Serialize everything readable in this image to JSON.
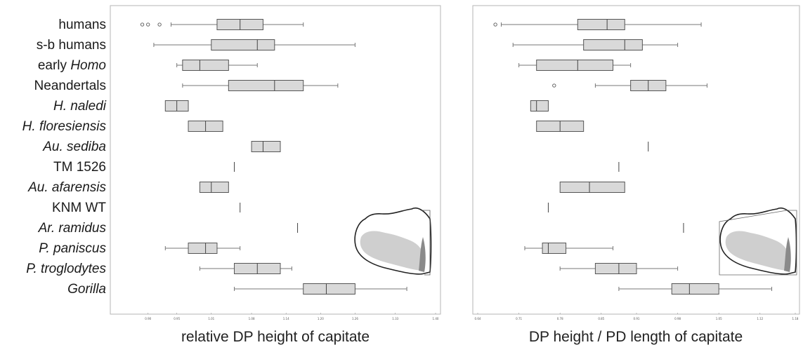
{
  "chart_data": [
    {
      "type": "box",
      "xlabel": "relative DP height of capitate",
      "xlim": [
        0.86,
        1.4
      ],
      "xticks": [
        0.9,
        0.95,
        1.01,
        1.08,
        1.14,
        1.2,
        1.26,
        1.33,
        1.4
      ],
      "xtick_labels": [
        "0.90",
        "0.95",
        "1.01",
        "1.08",
        "1.14",
        "1.20",
        "1.26",
        "1.33",
        "1.40"
      ],
      "categories": [
        {
          "label": "humans",
          "italic": false,
          "pre": "",
          "it": ""
        },
        {
          "label": "s-b humans",
          "italic": false,
          "pre": "",
          "it": ""
        },
        {
          "label": "early Homo",
          "italic": false,
          "pre": "early ",
          "it": "Homo"
        },
        {
          "label": "Neandertals",
          "italic": false,
          "pre": "",
          "it": ""
        },
        {
          "label": "H. naledi",
          "italic": true,
          "pre": "",
          "it": ""
        },
        {
          "label": "H. floresiensis",
          "italic": true,
          "pre": "",
          "it": ""
        },
        {
          "label": "Au. sediba",
          "italic": true,
          "pre": "",
          "it": ""
        },
        {
          "label": "TM 1526",
          "italic": false,
          "pre": "",
          "it": ""
        },
        {
          "label": "Au. afarensis",
          "italic": true,
          "pre": "",
          "it": ""
        },
        {
          "label": "KNM WT",
          "italic": false,
          "pre": "",
          "it": ""
        },
        {
          "label": "Ar. ramidus",
          "italic": true,
          "pre": "",
          "it": ""
        },
        {
          "label": "P. paniscus",
          "italic": true,
          "pre": "",
          "it": ""
        },
        {
          "label": "P. troglodytes",
          "italic": true,
          "pre": "",
          "it": ""
        },
        {
          "label": "Gorilla",
          "italic": true,
          "pre": "",
          "it": ""
        }
      ],
      "boxes": [
        {
          "min": 0.94,
          "q1": 1.02,
          "median": 1.06,
          "q3": 1.1,
          "max": 1.17,
          "outliers": [
            0.89,
            0.9,
            0.92
          ]
        },
        {
          "min": 0.91,
          "q1": 1.01,
          "median": 1.09,
          "q3": 1.12,
          "max": 1.26,
          "outliers": []
        },
        {
          "min": 0.95,
          "q1": 0.96,
          "median": 0.99,
          "q3": 1.04,
          "max": 1.09,
          "outliers": []
        },
        {
          "min": 0.96,
          "q1": 1.04,
          "median": 1.12,
          "q3": 1.17,
          "max": 1.23,
          "outliers": []
        },
        {
          "min": 0.93,
          "q1": 0.93,
          "median": 0.95,
          "q3": 0.97,
          "max": 0.97,
          "outliers": []
        },
        {
          "min": 0.97,
          "q1": 0.97,
          "median": 1.0,
          "q3": 1.03,
          "max": 1.03,
          "outliers": []
        },
        {
          "min": 1.08,
          "q1": 1.08,
          "median": 1.1,
          "q3": 1.13,
          "max": 1.13,
          "outliers": []
        },
        {
          "min": 1.05,
          "q1": 1.05,
          "median": 1.05,
          "q3": 1.05,
          "max": 1.05,
          "outliers": []
        },
        {
          "min": 0.99,
          "q1": 0.99,
          "median": 1.01,
          "q3": 1.04,
          "max": 1.04,
          "outliers": []
        },
        {
          "min": 1.06,
          "q1": 1.06,
          "median": 1.06,
          "q3": 1.06,
          "max": 1.06,
          "outliers": []
        },
        {
          "min": 1.16,
          "q1": 1.16,
          "median": 1.16,
          "q3": 1.16,
          "max": 1.16,
          "outliers": []
        },
        {
          "min": 0.93,
          "q1": 0.97,
          "median": 1.0,
          "q3": 1.02,
          "max": 1.06,
          "outliers": []
        },
        {
          "min": 0.99,
          "q1": 1.05,
          "median": 1.09,
          "q3": 1.13,
          "max": 1.15,
          "outliers": []
        },
        {
          "min": 1.05,
          "q1": 1.17,
          "median": 1.21,
          "q3": 1.26,
          "max": 1.35,
          "outliers": []
        }
      ]
    },
    {
      "type": "box",
      "xlabel": "DP height / PD length of capitate",
      "xlim": [
        0.64,
        1.18
      ],
      "xticks": [
        0.64,
        0.71,
        0.78,
        0.85,
        0.91,
        0.98,
        1.05,
        1.12,
        1.18
      ],
      "xtick_labels": [
        "0.64",
        "0.71",
        "0.78",
        "0.85",
        "0.91",
        "0.98",
        "1.05",
        "1.12",
        "1.18"
      ],
      "boxes": [
        {
          "min": 0.68,
          "q1": 0.81,
          "median": 0.86,
          "q3": 0.89,
          "max": 1.02,
          "outliers": [
            0.67
          ]
        },
        {
          "min": 0.7,
          "q1": 0.82,
          "median": 0.89,
          "q3": 0.92,
          "max": 0.98,
          "outliers": []
        },
        {
          "min": 0.71,
          "q1": 0.74,
          "median": 0.81,
          "q3": 0.87,
          "max": 0.9,
          "outliers": []
        },
        {
          "min": 0.84,
          "q1": 0.9,
          "median": 0.93,
          "q3": 0.96,
          "max": 1.03,
          "outliers": [
            0.77
          ]
        },
        {
          "min": 0.73,
          "q1": 0.73,
          "median": 0.74,
          "q3": 0.76,
          "max": 0.76,
          "outliers": []
        },
        {
          "min": 0.74,
          "q1": 0.74,
          "median": 0.78,
          "q3": 0.82,
          "max": 0.82,
          "outliers": []
        },
        {
          "min": 0.93,
          "q1": 0.93,
          "median": 0.93,
          "q3": 0.93,
          "max": 0.93,
          "outliers": []
        },
        {
          "min": 0.88,
          "q1": 0.88,
          "median": 0.88,
          "q3": 0.88,
          "max": 0.88,
          "outliers": []
        },
        {
          "min": 0.78,
          "q1": 0.78,
          "median": 0.83,
          "q3": 0.89,
          "max": 0.89,
          "outliers": []
        },
        {
          "min": 0.76,
          "q1": 0.76,
          "median": 0.76,
          "q3": 0.76,
          "max": 0.76,
          "outliers": []
        },
        {
          "min": 0.99,
          "q1": 0.99,
          "median": 0.99,
          "q3": 0.99,
          "max": 0.99,
          "outliers": []
        },
        {
          "min": 0.72,
          "q1": 0.75,
          "median": 0.76,
          "q3": 0.79,
          "max": 0.87,
          "outliers": []
        },
        {
          "min": 0.78,
          "q1": 0.84,
          "median": 0.88,
          "q3": 0.91,
          "max": 0.98,
          "outliers": []
        },
        {
          "min": 0.88,
          "q1": 0.97,
          "median": 1.0,
          "q3": 1.05,
          "max": 1.14,
          "outliers": []
        }
      ]
    }
  ]
}
